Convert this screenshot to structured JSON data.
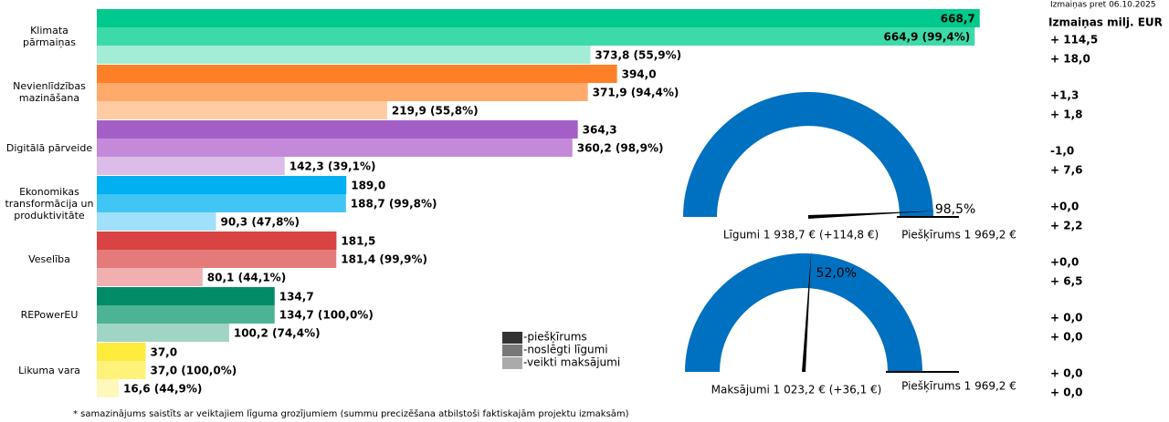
{
  "chart_data": [
    {
      "type": "hbar-groups",
      "categories": [
        "Klimata pārmaiņas",
        "Nevienlīdzības mazināšana",
        "Digitālā pārveide",
        "Ekonomikas transformācija un produktivitāte",
        "Veselība",
        "REPowerEU",
        "Likuma vara"
      ],
      "category_colors": [
        [
          "#00c98d",
          "#3ddaa9",
          "#a3ecd6"
        ],
        [
          "#ff7f27",
          "#ffaa6b",
          "#ffcba3"
        ],
        [
          "#a45fc7",
          "#c48ad9",
          "#dcbce9"
        ],
        [
          "#00b0f0",
          "#40c5f5",
          "#a0e0fa"
        ],
        [
          "#d94343",
          "#e57a7a",
          "#f0b0b0"
        ],
        [
          "#008c66",
          "#4db395",
          "#a0d4c4"
        ],
        [
          "#ffeb3b",
          "#fff27a",
          "#fff8bd"
        ]
      ],
      "change_colors": [
        "#00c98d",
        "#ff7f27",
        "#a45fc7",
        "#00b0f0",
        "#d94343",
        "#008c66",
        "#d4b800"
      ],
      "xlim": [
        0,
        700
      ],
      "series": [
        {
          "name": "-piešķīrums",
          "color": "#333333",
          "values": [
            668.7,
            394.0,
            364.3,
            189.0,
            181.5,
            134.7,
            37.0
          ],
          "value_labels": [
            "668,7",
            "394,0",
            "364,3",
            "189,0",
            "181,5",
            "134,7",
            "37,0"
          ]
        },
        {
          "name": "-noslēgti līgumi",
          "color": "#777777",
          "values": [
            664.9,
            371.9,
            360.2,
            188.7,
            181.4,
            134.7,
            37.0
          ],
          "value_labels": [
            "664,9 (99,4%)",
            "371,9 (94,4%)",
            "360,2 (98,9%)",
            "188,7 (99,8%)",
            "181,4 (99,9%)",
            "134,7 (100,0%)",
            "37,0 (100,0%)"
          ]
        },
        {
          "name": "-veikti maksājumi",
          "color": "#aaaaaa",
          "values": [
            373.8,
            219.9,
            142.3,
            90.3,
            80.1,
            100.2,
            16.6
          ],
          "value_labels": [
            "373,8 (55,9%)",
            "219,9 (55,8%)",
            "142,3 (39,1%)",
            "90,3 (47,8%)",
            "80,1 (44,1%)",
            "100,2 (74,4%)",
            "16,6 (44,9%)"
          ]
        }
      ],
      "changes": {
        "title": "Izmaiņas pret 06.10.2025",
        "header": "Izmaiņas milj. EUR",
        "labels": [
          [
            "+ 114,5",
            "+ 18,0"
          ],
          [
            "+1,3",
            "+ 1,8"
          ],
          [
            "-1,0",
            "+ 7,6"
          ],
          [
            "+0,0",
            "+ 2,2"
          ],
          [
            "+0,0",
            "+ 6,5"
          ],
          [
            "+ 0,0",
            "+ 0,0"
          ],
          [
            "+ 0,0",
            "+ 0,0"
          ]
        ]
      }
    },
    {
      "type": "gauge",
      "value": 98.5,
      "value_label": "98,5%",
      "ylim": [
        0,
        100
      ],
      "color": "#0070c0",
      "label": "Līgumi 1 938,7 € (+114,8 €)",
      "max_label": "Piešķīrums 1 969,2 €"
    },
    {
      "type": "gauge",
      "value": 52.0,
      "value_label": "52,0%",
      "ylim": [
        0,
        100
      ],
      "color": "#0070c0",
      "label": "Maksājumi 1 023,2 € (+36,1 €)",
      "max_label": "Piešķīrums 1 969,2 €"
    }
  ],
  "footnote": "* samazinājums saistīts ar veiktajiem līguma grozījumiem (summu precizēšana atbilstoši faktiskajām projektu izmaksām)"
}
